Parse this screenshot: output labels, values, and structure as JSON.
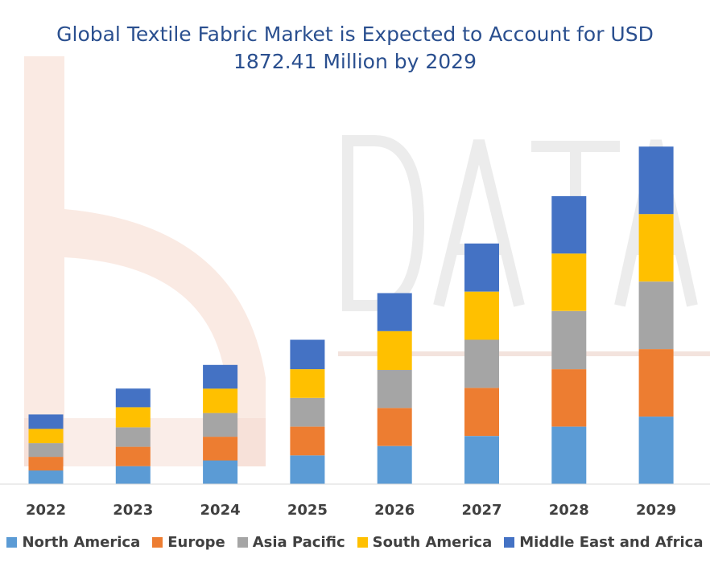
{
  "chart_data": {
    "type": "bar",
    "stacked": true,
    "title": "Global Textile Fabric Market is Expected to Account for USD 1872.41 Million by 2029",
    "title_lines": [
      "Global Textile Fabric Market is Expected to Account for USD",
      "1872.41 Million by 2029"
    ],
    "categories": [
      "2022",
      "2023",
      "2024",
      "2025",
      "2026",
      "2027",
      "2028",
      "2029"
    ],
    "xlabel": "",
    "ylabel": "",
    "grid": false,
    "legend_position": "bottom",
    "series": [
      {
        "name": "North America",
        "color": "#5b9bd5",
        "values": [
          19,
          25,
          33,
          40,
          53,
          67,
          80,
          94
        ]
      },
      {
        "name": "Europe",
        "color": "#ed7d31",
        "values": [
          19,
          27,
          33,
          40,
          53,
          67,
          80,
          94
        ]
      },
      {
        "name": "Asia Pacific",
        "color": "#a5a5a5",
        "values": [
          19,
          27,
          33,
          40,
          53,
          67,
          81,
          94
        ]
      },
      {
        "name": "South America",
        "color": "#ffc000",
        "values": [
          20,
          28,
          34,
          40,
          54,
          67,
          80,
          94
        ]
      },
      {
        "name": "Middle East and Africa",
        "color": "#4472c4",
        "values": [
          20,
          26,
          33,
          41,
          53,
          67,
          80,
          94
        ]
      }
    ]
  }
}
